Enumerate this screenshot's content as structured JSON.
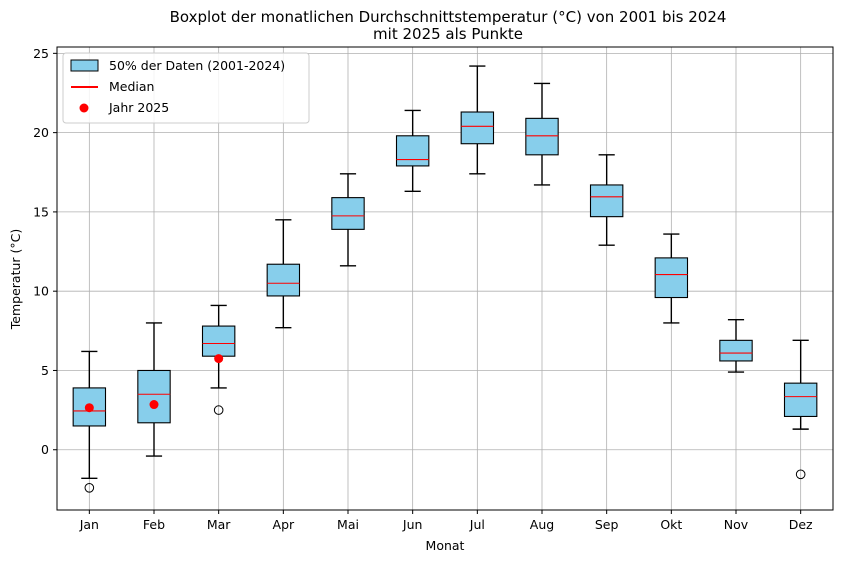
{
  "chart_data": {
    "type": "boxplot",
    "title_line1": "Boxplot der monatlichen Durchschnittstemperatur (°C) von 2001 bis 2024",
    "title_line2": "mit 2025 als Punkte",
    "xlabel": "Monat",
    "ylabel": "Temperatur (°C)",
    "ylim": [
      -3.8,
      25.4
    ],
    "yticks": [
      0,
      5,
      10,
      15,
      20,
      25
    ],
    "grid": true,
    "legend_position": "top-left",
    "legend": {
      "box_label": "50% der Daten (2001-2024)",
      "median_label": "Median",
      "point_label": "Jahr 2025"
    },
    "colors": {
      "box_fill": "#87ceeb",
      "median": "#ff0000",
      "point": "#ff0000",
      "grid": "#b0b0b0"
    },
    "categories": [
      "Jan",
      "Feb",
      "Mar",
      "Apr",
      "Mai",
      "Jun",
      "Jul",
      "Aug",
      "Sep",
      "Okt",
      "Nov",
      "Dez"
    ],
    "boxes": [
      {
        "whislo": -1.8,
        "q1": 1.5,
        "med": 2.45,
        "q3": 3.9,
        "whishi": 6.2,
        "fliers": [
          -2.4
        ]
      },
      {
        "whislo": -0.4,
        "q1": 1.7,
        "med": 3.5,
        "q3": 5.0,
        "whishi": 8.0,
        "fliers": []
      },
      {
        "whislo": 3.9,
        "q1": 5.9,
        "med": 6.7,
        "q3": 7.8,
        "whishi": 9.1,
        "fliers": [
          2.5
        ]
      },
      {
        "whislo": 7.7,
        "q1": 9.7,
        "med": 10.5,
        "q3": 11.7,
        "whishi": 14.5,
        "fliers": []
      },
      {
        "whislo": 11.6,
        "q1": 13.9,
        "med": 14.75,
        "q3": 15.9,
        "whishi": 17.4,
        "fliers": []
      },
      {
        "whislo": 16.3,
        "q1": 17.9,
        "med": 18.3,
        "q3": 19.8,
        "whishi": 21.4,
        "fliers": []
      },
      {
        "whislo": 17.4,
        "q1": 19.3,
        "med": 20.4,
        "q3": 21.3,
        "whishi": 24.2,
        "fliers": []
      },
      {
        "whislo": 16.7,
        "q1": 18.6,
        "med": 19.8,
        "q3": 20.9,
        "whishi": 23.1,
        "fliers": []
      },
      {
        "whislo": 12.9,
        "q1": 14.7,
        "med": 15.95,
        "q3": 16.7,
        "whishi": 18.6,
        "fliers": []
      },
      {
        "whislo": 8.0,
        "q1": 9.6,
        "med": 11.05,
        "q3": 12.1,
        "whishi": 13.6,
        "fliers": []
      },
      {
        "whislo": 4.9,
        "q1": 5.6,
        "med": 6.1,
        "q3": 6.9,
        "whishi": 8.2,
        "fliers": []
      },
      {
        "whislo": 1.3,
        "q1": 2.1,
        "med": 3.35,
        "q3": 4.2,
        "whishi": 6.9,
        "fliers": [
          -1.55
        ]
      }
    ],
    "points_2025": [
      {
        "month": "Jan",
        "value": 2.65
      },
      {
        "month": "Feb",
        "value": 2.85
      },
      {
        "month": "Mar",
        "value": 5.75
      }
    ]
  }
}
